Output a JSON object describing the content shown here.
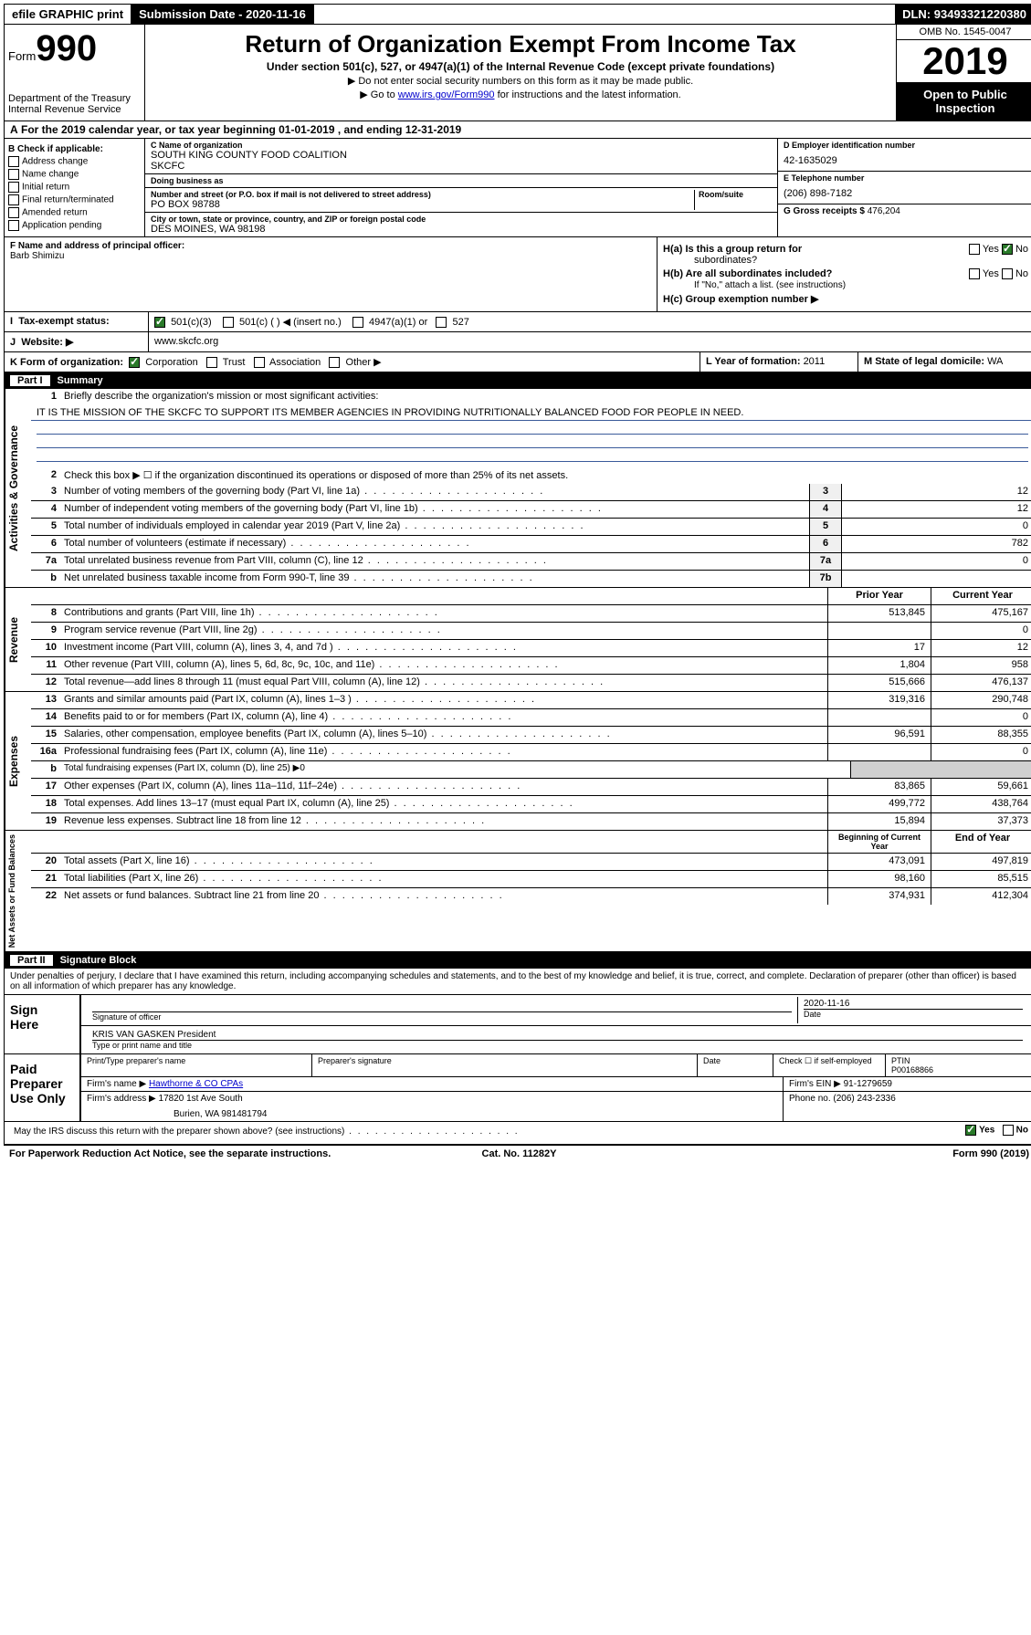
{
  "topbar": {
    "efile": "efile GRAPHIC print",
    "subdate_label": "Submission Date - ",
    "subdate": "2020-11-16",
    "dln_label": "DLN: ",
    "dln": "93493321220380"
  },
  "head": {
    "form_word": "Form",
    "form_num": "990",
    "dept1": "Department of the Treasury",
    "dept2": "Internal Revenue Service",
    "title": "Return of Organization Exempt From Income Tax",
    "sub": "Under section 501(c), 527, or 4947(a)(1) of the Internal Revenue Code (except private foundations)",
    "sub2": "▶ Do not enter social security numbers on this form as it may be made public.",
    "sub3_pre": "▶ Go to ",
    "sub3_link": "www.irs.gov/Form990",
    "sub3_post": " for instructions and the latest information.",
    "omb": "OMB No. 1545-0047",
    "year": "2019",
    "open1": "Open to Public",
    "open2": "Inspection"
  },
  "calyear": {
    "a": "A",
    "text": " For the 2019 calendar year, or tax year beginning 01-01-2019    , and ending 12-31-2019"
  },
  "checkB": {
    "label": "B Check if applicable:",
    "items": [
      "Address change",
      "Name change",
      "Initial return",
      "Final return/terminated",
      "Amended return",
      "Application pending"
    ]
  },
  "nameblock": {
    "c_label": "C Name of organization",
    "org1": "SOUTH KING COUNTY FOOD COALITION",
    "org2": "SKCFC",
    "dba_label": "Doing business as",
    "addr_label": "Number and street (or P.O. box if mail is not delivered to street address)",
    "room_label": "Room/suite",
    "addr": "PO BOX 98788",
    "city_label": "City or town, state or province, country, and ZIP or foreign postal code",
    "city": "DES MOINES, WA  98198"
  },
  "rightblock": {
    "d_label": "D Employer identification number",
    "ein": "42-1635029",
    "e_label": "E Telephone number",
    "phone": "(206) 898-7182",
    "g_label": "G Gross receipts $ ",
    "gross": "476,204"
  },
  "fblock": {
    "f_label": "F  Name and address of principal officer:",
    "officer": "Barb Shimizu"
  },
  "hblock": {
    "ha1": "H(a)  Is this a group return for",
    "ha2": "subordinates?",
    "hb1": "H(b)  Are all subordinates included?",
    "hb2": "If \"No,\" attach a list. (see instructions)",
    "hc": "H(c)  Group exemption number ▶",
    "yes": "Yes",
    "no": "No"
  },
  "taxstatus": {
    "i": "I",
    "label": "Tax-exempt status:",
    "opt1": "501(c)(3)",
    "opt2": "501(c) (   ) ◀ (insert no.)",
    "opt3": "4947(a)(1) or",
    "opt4": "527"
  },
  "website": {
    "j": "J",
    "label": "Website: ▶",
    "val": "www.skcfc.org"
  },
  "korg": {
    "k": "K Form of organization:",
    "corp": "Corporation",
    "trust": "Trust",
    "assoc": "Association",
    "other": "Other ▶",
    "l": "L Year of formation: ",
    "lval": "2011",
    "m": "M State of legal domicile: ",
    "mval": "WA"
  },
  "part1": {
    "label": "Part I",
    "title": "Summary"
  },
  "gov": {
    "vlabel": "Activities & Governance",
    "q1": "Briefly describe the organization's mission or most significant activities:",
    "mission": "IT IS THE MISSION OF THE SKCFC TO SUPPORT ITS MEMBER AGENCIES IN PROVIDING NUTRITIONALLY BALANCED FOOD FOR PEOPLE IN NEED.",
    "q2": "Check this box ▶ ☐  if the organization discontinued its operations or disposed of more than 25% of its net assets.",
    "q3": "Number of voting members of the governing body (Part VI, line 1a)",
    "q4": "Number of independent voting members of the governing body (Part VI, line 1b)",
    "q5": "Total number of individuals employed in calendar year 2019 (Part V, line 2a)",
    "q6": "Total number of volunteers (estimate if necessary)",
    "q7a": "Total unrelated business revenue from Part VIII, column (C), line 12",
    "q7b": "Net unrelated business taxable income from Form 990-T, line 39",
    "v3": "12",
    "v4": "12",
    "v5": "0",
    "v6": "782",
    "v7a": "0",
    "v7b": ""
  },
  "rev": {
    "vlabel": "Revenue",
    "hdr_prior": "Prior Year",
    "hdr_curr": "Current Year",
    "rows": [
      {
        "n": "8",
        "t": "Contributions and grants (Part VIII, line 1h)",
        "p": "513,845",
        "c": "475,167"
      },
      {
        "n": "9",
        "t": "Program service revenue (Part VIII, line 2g)",
        "p": "",
        "c": "0"
      },
      {
        "n": "10",
        "t": "Investment income (Part VIII, column (A), lines 3, 4, and 7d )",
        "p": "17",
        "c": "12"
      },
      {
        "n": "11",
        "t": "Other revenue (Part VIII, column (A), lines 5, 6d, 8c, 9c, 10c, and 11e)",
        "p": "1,804",
        "c": "958"
      },
      {
        "n": "12",
        "t": "Total revenue—add lines 8 through 11 (must equal Part VIII, column (A), line 12)",
        "p": "515,666",
        "c": "476,137"
      }
    ]
  },
  "exp": {
    "vlabel": "Expenses",
    "rows": [
      {
        "n": "13",
        "t": "Grants and similar amounts paid (Part IX, column (A), lines 1–3 )",
        "p": "319,316",
        "c": "290,748"
      },
      {
        "n": "14",
        "t": "Benefits paid to or for members (Part IX, column (A), line 4)",
        "p": "",
        "c": "0"
      },
      {
        "n": "15",
        "t": "Salaries, other compensation, employee benefits (Part IX, column (A), lines 5–10)",
        "p": "96,591",
        "c": "88,355"
      },
      {
        "n": "16a",
        "t": "Professional fundraising fees (Part IX, column (A), line 11e)",
        "p": "",
        "c": "0"
      },
      {
        "n": "b",
        "t": "Total fundraising expenses (Part IX, column (D), line 25) ▶0",
        "p": null,
        "c": null
      },
      {
        "n": "17",
        "t": "Other expenses (Part IX, column (A), lines 11a–11d, 11f–24e)",
        "p": "83,865",
        "c": "59,661"
      },
      {
        "n": "18",
        "t": "Total expenses. Add lines 13–17 (must equal Part IX, column (A), line 25)",
        "p": "499,772",
        "c": "438,764"
      },
      {
        "n": "19",
        "t": "Revenue less expenses. Subtract line 18 from line 12",
        "p": "15,894",
        "c": "37,373"
      }
    ]
  },
  "net": {
    "vlabel": "Net Assets or Fund Balances",
    "hdr_begin": "Beginning of Current Year",
    "hdr_end": "End of Year",
    "rows": [
      {
        "n": "20",
        "t": "Total assets (Part X, line 16)",
        "p": "473,091",
        "c": "497,819"
      },
      {
        "n": "21",
        "t": "Total liabilities (Part X, line 26)",
        "p": "98,160",
        "c": "85,515"
      },
      {
        "n": "22",
        "t": "Net assets or fund balances. Subtract line 21 from line 20",
        "p": "374,931",
        "c": "412,304"
      }
    ]
  },
  "part2": {
    "label": "Part II",
    "title": "Signature Block"
  },
  "perjury": "Under penalties of perjury, I declare that I have examined this return, including accompanying schedules and statements, and to the best of my knowledge and belief, it is true, correct, and complete. Declaration of preparer (other than officer) is based on all information of which preparer has any knowledge.",
  "sign": {
    "label1": "Sign",
    "label2": "Here",
    "sig_officer": "Signature of officer",
    "date": "2020-11-16",
    "date_label": "Date",
    "name": "KRIS VAN GASKEN  President",
    "name_label": "Type or print name and title"
  },
  "paid": {
    "label1": "Paid",
    "label2": "Preparer",
    "label3": "Use Only",
    "h_name": "Print/Type preparer's name",
    "h_sig": "Preparer's signature",
    "h_date": "Date",
    "h_check": "Check ☐ if self-employed",
    "h_ptin_label": "PTIN",
    "ptin": "P00168866",
    "firm_name_label": "Firm's name      ▶",
    "firm_name": "Hawthorne & CO CPAs",
    "firm_ein_label": "Firm's EIN ▶",
    "firm_ein": "91-1279659",
    "firm_addr_label": "Firm's address ▶",
    "firm_addr1": "17820 1st Ave South",
    "firm_addr2": "Burien, WA  981481794",
    "phone_label": "Phone no. ",
    "phone": "(206) 243-2336"
  },
  "discuss": {
    "q": "May the IRS discuss this return with the preparer shown above? (see instructions)",
    "yes": "Yes",
    "no": "No"
  },
  "footer": {
    "left": "For Paperwork Reduction Act Notice, see the separate instructions.",
    "center": "Cat. No. 11282Y",
    "right": "Form 990 (2019)"
  }
}
